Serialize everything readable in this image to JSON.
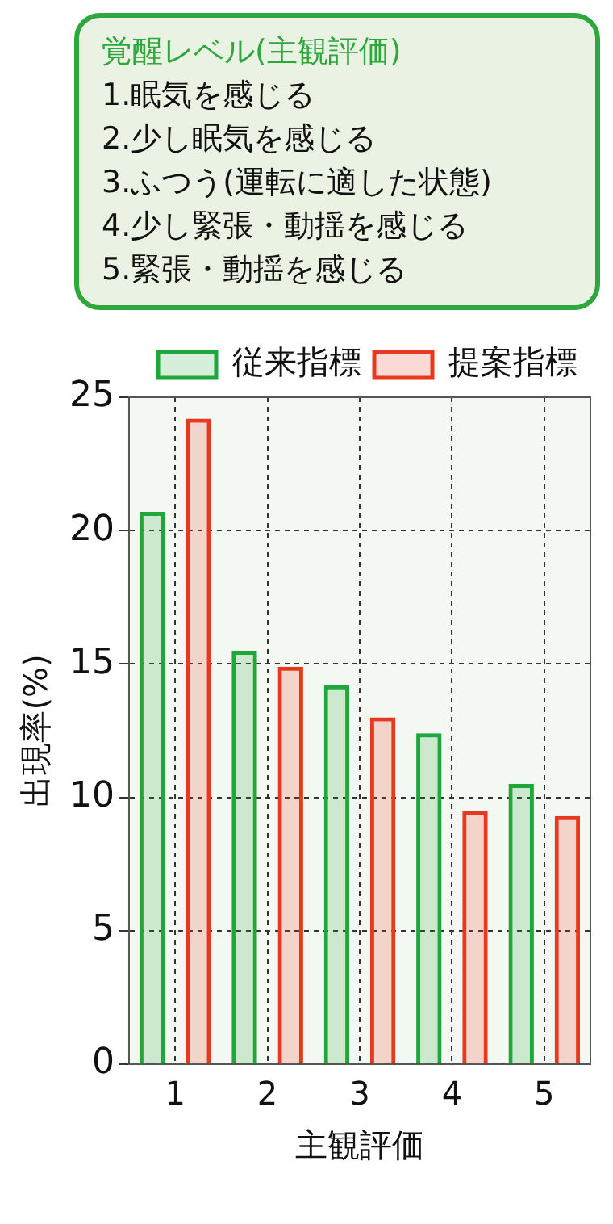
{
  "chart_data": {
    "type": "bar",
    "title": "覚醒レベル(主観評価)",
    "annotations": [
      "1.眠気を感じる",
      "2.少し眠気を感じる",
      "3.ふつう(運転に適した状態)",
      "4.少し緊張・動揺を感じる",
      "5.緊張・動揺を感じる"
    ],
    "categories": [
      "1",
      "2",
      "3",
      "4",
      "5"
    ],
    "series": [
      {
        "name": "従来指標",
        "color": "#1ea83c",
        "values": [
          20.7,
          15.5,
          14.2,
          12.4,
          10.5
        ]
      },
      {
        "name": "提案指標",
        "color": "#e8381f",
        "values": [
          24.2,
          14.9,
          13.0,
          9.5,
          9.3
        ]
      }
    ],
    "xlabel": "主観評価",
    "ylabel": "出現率(%)",
    "ylim": [
      0,
      25
    ],
    "yticks": [
      0,
      5,
      10,
      15,
      20,
      25
    ],
    "grid": true,
    "legend": "top right"
  }
}
